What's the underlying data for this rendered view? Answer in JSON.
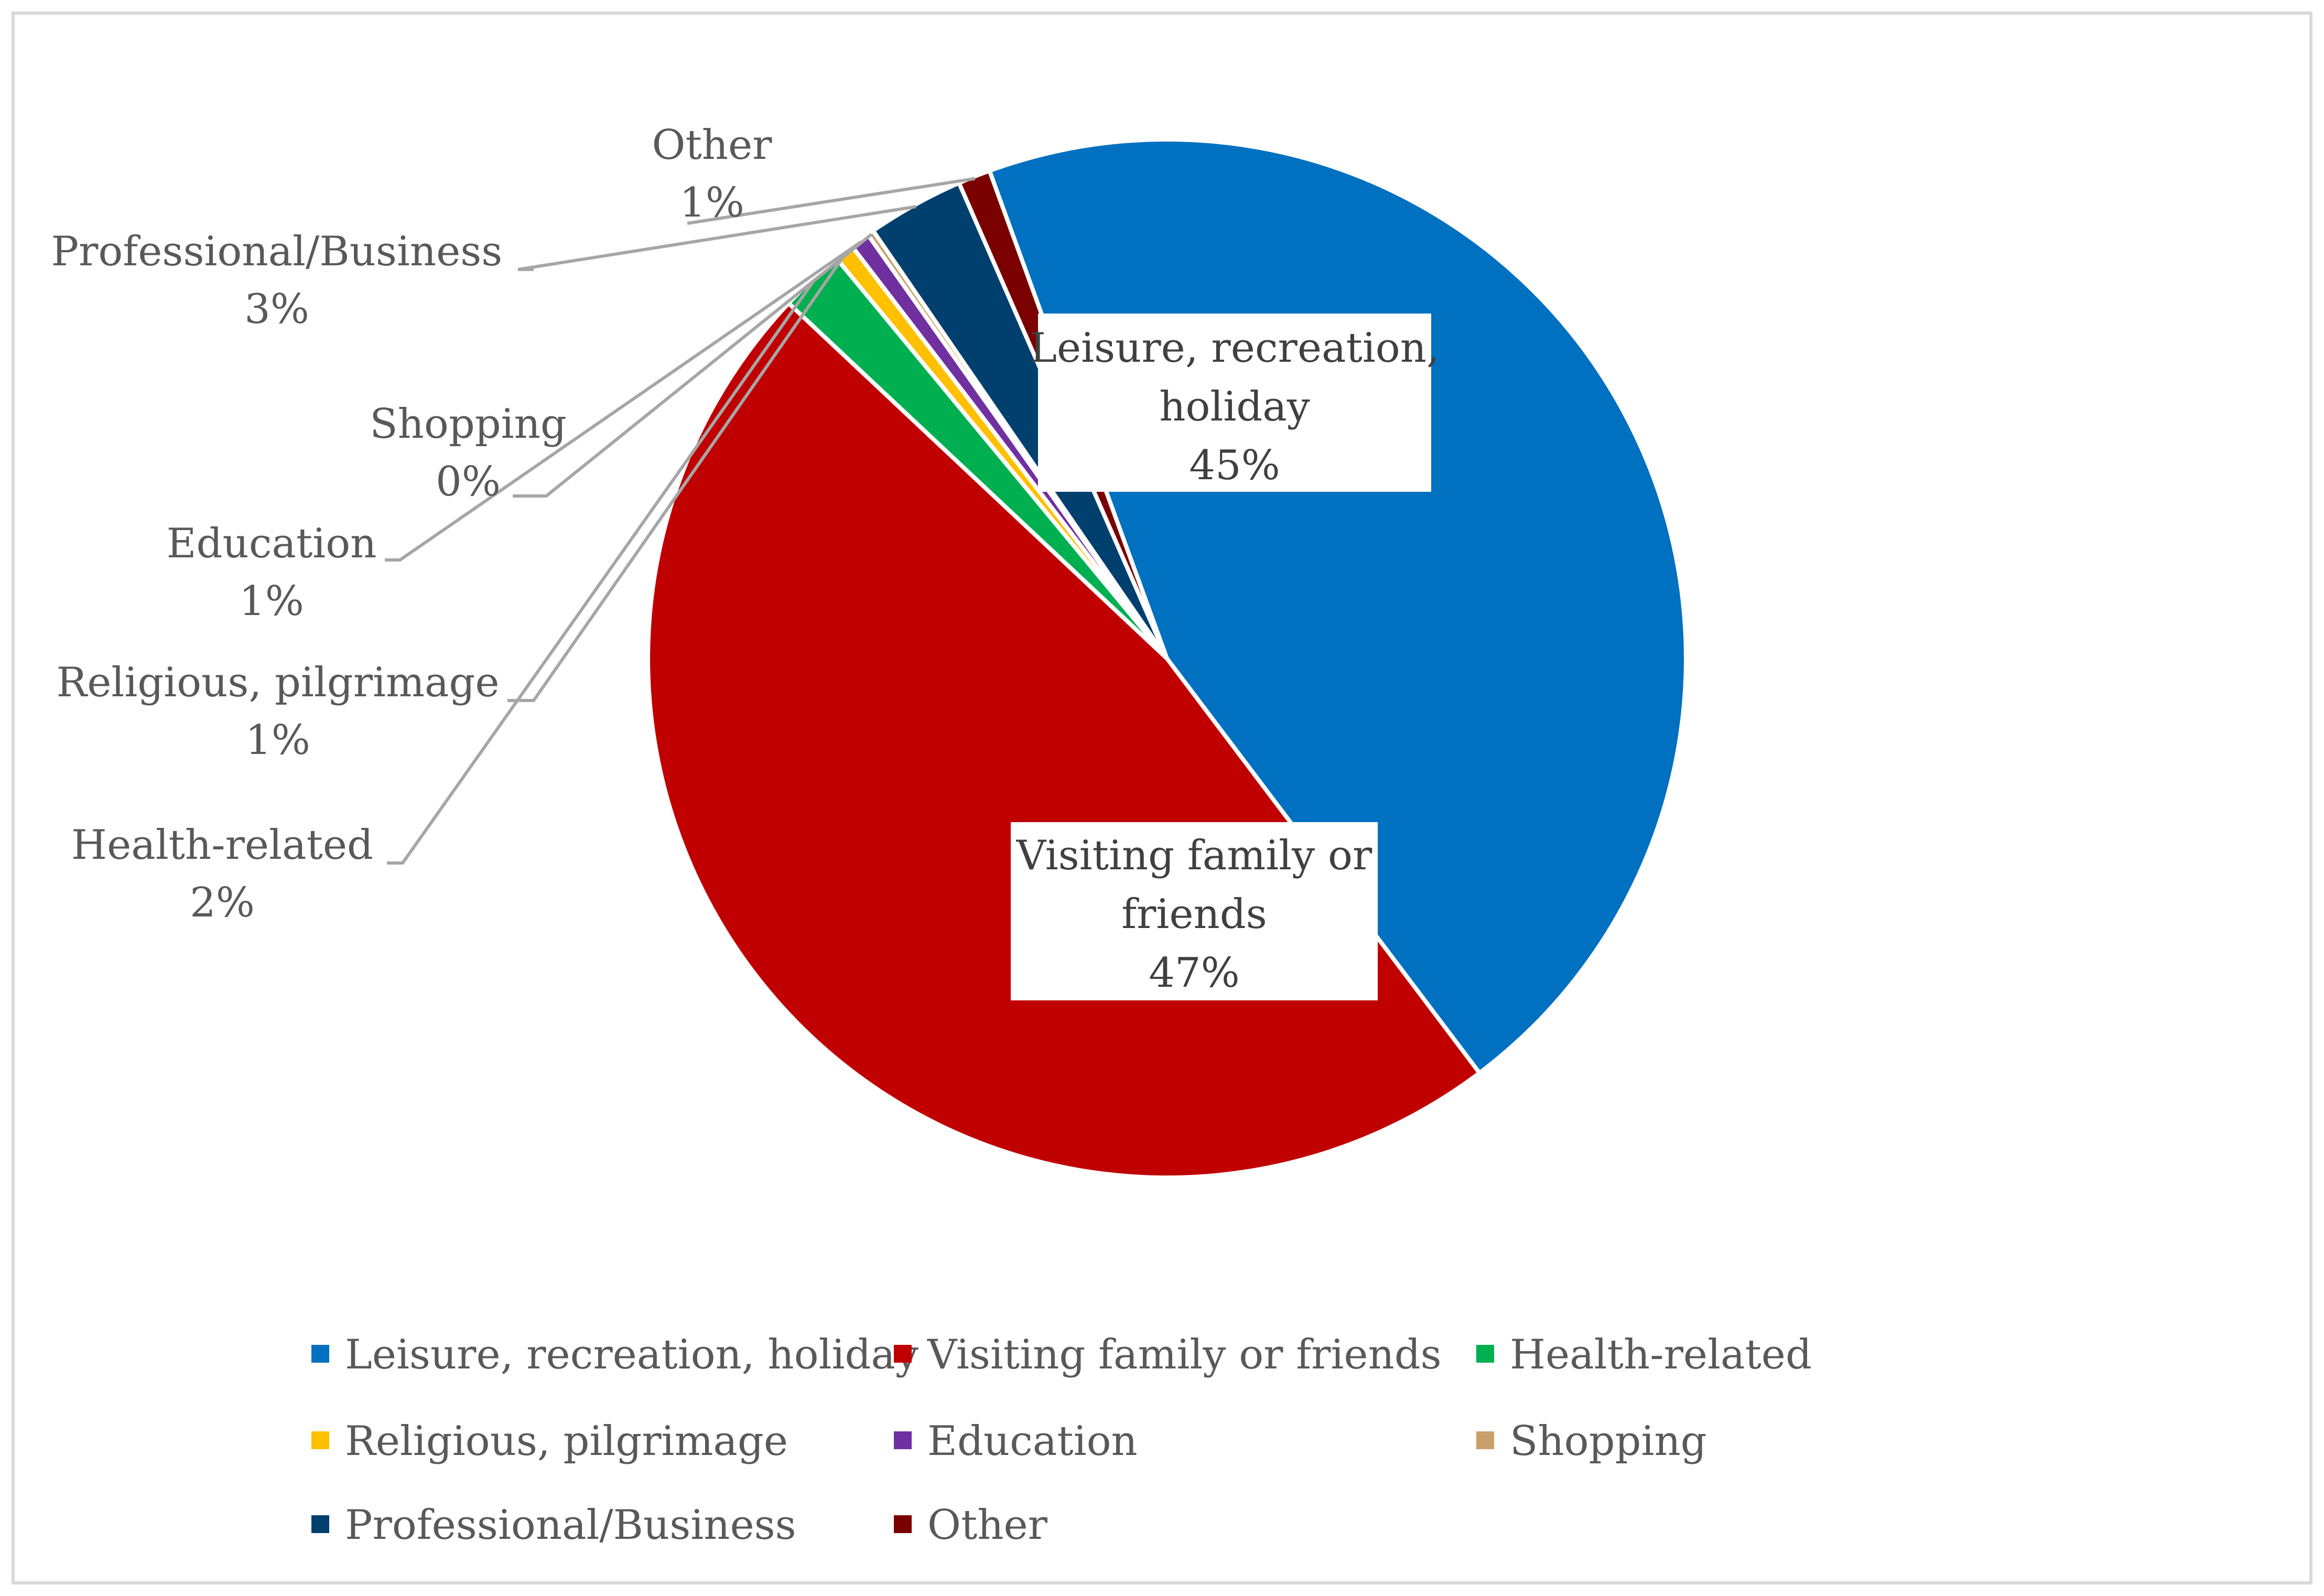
{
  "chart_data": {
    "type": "pie",
    "title": "",
    "unit": "%",
    "start_angle_deg": -110,
    "direction": "clockwise",
    "legend_position": "bottom",
    "slices": [
      {
        "name": "Leisure, recreation, holiday",
        "value": 45,
        "label": "45%",
        "color": "#0070C0"
      },
      {
        "name": "Visiting family or friends",
        "value": 47,
        "label": "47%",
        "color": "#C00000"
      },
      {
        "name": "Health-related",
        "value": 2,
        "label": "2%",
        "color": "#00B050"
      },
      {
        "name": "Religious, pilgrimage",
        "value": 0.6,
        "label": "1%",
        "color": "#FFC000"
      },
      {
        "name": "Education",
        "value": 0.6,
        "label": "1%",
        "color": "#7030A0"
      },
      {
        "name": "Shopping",
        "value": 0.2,
        "label": "0%",
        "color": "#C9A06A"
      },
      {
        "name": "Professional/Business",
        "value": 3,
        "label": "3%",
        "color": "#003F6E"
      },
      {
        "name": "Other",
        "value": 1,
        "label": "1%",
        "color": "#7B0000"
      }
    ],
    "inner_labels": [
      {
        "lines": [
          "Leisure, recreation,",
          "holiday"
        ],
        "pct": "45%"
      },
      {
        "lines": [
          "Visiting family or",
          "friends"
        ],
        "pct": "47%"
      }
    ],
    "outer_labels": [
      {
        "name": "Other",
        "pct": "1%"
      },
      {
        "name": "Professional/Business",
        "pct": "3%"
      },
      {
        "name": "Shopping",
        "pct": "0%"
      },
      {
        "name": "Education",
        "pct": "1%"
      },
      {
        "name": "Religious, pilgrimage",
        "pct": "1%"
      },
      {
        "name": "Health-related",
        "pct": "2%"
      }
    ],
    "legend": [
      {
        "name": "Leisure, recreation, holiday",
        "color": "#0070C0"
      },
      {
        "name": "Visiting family or friends",
        "color": "#C00000"
      },
      {
        "name": "Health-related",
        "color": "#00B050"
      },
      {
        "name": "Religious, pilgrimage",
        "color": "#FFC000"
      },
      {
        "name": "Education",
        "color": "#7030A0"
      },
      {
        "name": "Shopping",
        "color": "#C9A06A"
      },
      {
        "name": "Professional/Business",
        "color": "#003F6E"
      },
      {
        "name": "Other",
        "color": "#7B0000"
      }
    ]
  }
}
